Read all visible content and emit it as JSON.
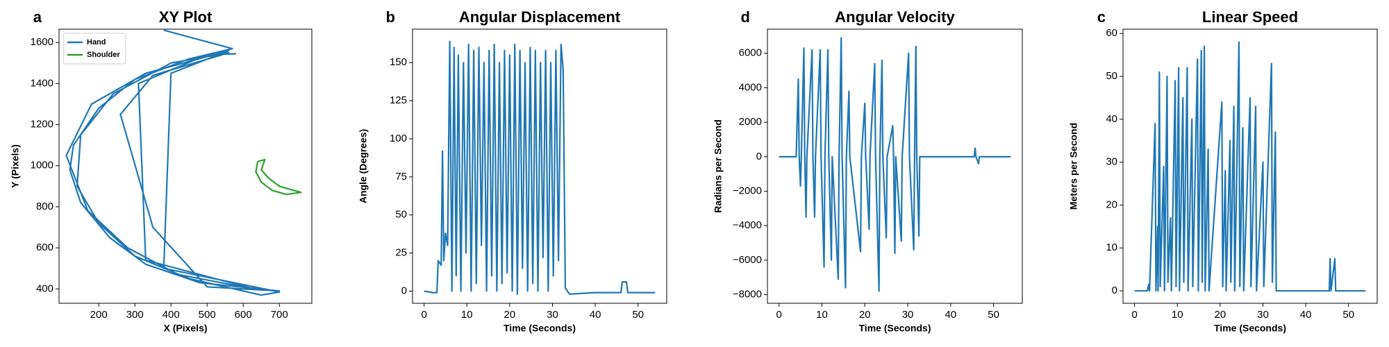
{
  "chart_data": [
    {
      "type": "line",
      "panel_label": "a",
      "title": "XY Plot",
      "xlabel": "X (Pixels)",
      "ylabel": "Y (Pixels)",
      "xlim": [
        90,
        790
      ],
      "ylim": [
        330,
        1665
      ],
      "xticks": [
        200,
        300,
        400,
        500,
        600,
        700
      ],
      "yticks": [
        400,
        600,
        800,
        1000,
        1200,
        1400,
        1600
      ],
      "legend": "upper left",
      "series": [
        {
          "name": "Hand",
          "color": "#1f77b4",
          "x": [
            380,
            570,
            450,
            300,
            200,
            130,
            120,
            150,
            230,
            330,
            480,
            700,
            500,
            350,
            260,
            350,
            560,
            400,
            240,
            150,
            140,
            200,
            300,
            450,
            650,
            700,
            380,
            400,
            560,
            330,
            180,
            110,
            170,
            280,
            420,
            630,
            330,
            310,
            500,
            580
          ],
          "values": [
            1660,
            1570,
            1520,
            1420,
            1280,
            1100,
            980,
            820,
            650,
            520,
            430,
            390,
            410,
            700,
            1250,
            1440,
            1550,
            1500,
            1350,
            1150,
            900,
            720,
            560,
            450,
            370,
            385,
            500,
            1450,
            1560,
            1450,
            1300,
            1050,
            780,
            600,
            470,
            400,
            540,
            1400,
            1540,
            1545
          ]
        },
        {
          "name": "Shoulder",
          "color": "#2ca02c",
          "x": [
            640,
            660,
            650,
            670,
            700,
            740,
            760,
            720,
            680,
            650,
            635,
            640
          ],
          "values": [
            1020,
            1030,
            980,
            940,
            900,
            880,
            870,
            860,
            880,
            920,
            970,
            1020
          ]
        }
      ]
    },
    {
      "type": "line",
      "panel_label": "b",
      "title": "Angular Displacement",
      "xlabel": "Time (Seconds)",
      "ylabel": "Angle (Degrees)",
      "xlim": [
        -2.7,
        56.7
      ],
      "ylim": [
        -8,
        172
      ],
      "xticks": [
        0,
        10,
        20,
        30,
        40,
        50
      ],
      "yticks": [
        0,
        25,
        50,
        75,
        100,
        125,
        150
      ],
      "color": "#1f77b4",
      "x": [
        0,
        2,
        3,
        3.3,
        4,
        4.3,
        4.6,
        5,
        5.5,
        6,
        6.5,
        7,
        7.5,
        8,
        8.6,
        9.2,
        9.8,
        10.4,
        11,
        11.6,
        12.2,
        12.8,
        13.4,
        14,
        14.6,
        15.2,
        15.8,
        16.4,
        17,
        17.6,
        18.2,
        18.8,
        19.4,
        20,
        20.6,
        21.2,
        21.8,
        22.4,
        23,
        23.6,
        24.2,
        24.8,
        25.4,
        26,
        26.6,
        27.2,
        27.8,
        28.4,
        29,
        29.6,
        30.2,
        30.8,
        31.4,
        32,
        32.5,
        33,
        34,
        40,
        46,
        46.3,
        47.3,
        47.6,
        54
      ],
      "values": [
        0,
        -1,
        -1,
        20,
        17,
        92,
        20,
        38,
        30,
        164,
        0,
        160,
        10,
        155,
        0,
        150,
        25,
        162,
        0,
        158,
        5,
        160,
        30,
        150,
        0,
        158,
        10,
        162,
        0,
        150,
        5,
        158,
        12,
        155,
        0,
        162,
        -2,
        158,
        15,
        150,
        0,
        160,
        5,
        158,
        0,
        150,
        22,
        158,
        0,
        150,
        10,
        158,
        20,
        162,
        145,
        2,
        -2,
        -1,
        -1,
        6,
        6,
        -1,
        -1
      ]
    },
    {
      "type": "line",
      "panel_label": "d",
      "title": "Angular Velocity",
      "xlabel": "Time (Seconds)",
      "ylabel": "Radians per Second",
      "xlim": [
        -2.7,
        56.7
      ],
      "ylim": [
        -8500,
        7400
      ],
      "xticks": [
        0,
        10,
        20,
        30,
        40,
        50
      ],
      "yticks": [
        {
          "value": -8000,
          "label": "−8000"
        },
        {
          "value": -6000,
          "label": "−6000"
        },
        {
          "value": -4000,
          "label": "−4000"
        },
        {
          "value": -2000,
          "label": "−2000"
        },
        0,
        2000,
        4000,
        6000
      ],
      "color": "#1f77b4",
      "x": [
        0,
        4,
        4.5,
        4.7,
        5,
        5.2,
        5.8,
        6,
        6.3,
        6.5,
        7.7,
        7.9,
        8.3,
        8.5,
        9.6,
        9.8,
        10.5,
        10.7,
        11.4,
        11.6,
        12.2,
        12.4,
        13.8,
        14,
        14.5,
        14.7,
        15.5,
        15.7,
        16.3,
        16.5,
        19,
        19.2,
        20,
        20.2,
        21,
        21.2,
        22.3,
        22.5,
        23.3,
        23.5,
        24,
        24.2,
        25,
        25.2,
        26.5,
        26.7,
        27,
        27.2,
        28.5,
        28.7,
        30.2,
        30.4,
        31.4,
        31.6,
        31.9,
        32.1,
        32.6,
        32.8,
        45.5,
        45.7,
        45.9,
        46.5,
        46.7,
        54
      ],
      "values": [
        0,
        0,
        4500,
        0,
        -1700,
        0,
        6300,
        0,
        -3500,
        0,
        6200,
        0,
        -3500,
        0,
        6200,
        0,
        -6400,
        0,
        6200,
        0,
        -6000,
        0,
        -7100,
        0,
        6900,
        0,
        -7600,
        0,
        3800,
        0,
        -5500,
        0,
        3100,
        0,
        -4200,
        0,
        5400,
        0,
        -7800,
        0,
        5600,
        0,
        -4700,
        0,
        1800,
        0,
        -5600,
        0,
        -4900,
        0,
        6000,
        0,
        -5400,
        0,
        6400,
        0,
        -4600,
        0,
        0,
        500,
        0,
        -400,
        0,
        0
      ]
    },
    {
      "type": "line",
      "panel_label": "c",
      "title": "Linear Speed",
      "xlabel": "Time (Seconds)",
      "ylabel": "Meters per Second",
      "xlim": [
        -2.7,
        56.7
      ],
      "ylim": [
        -2.9,
        61
      ],
      "xticks": [
        0,
        10,
        20,
        30,
        40,
        50
      ],
      "yticks": [
        0,
        10,
        20,
        30,
        40,
        50,
        60
      ],
      "color": "#1f77b4",
      "x": [
        0,
        3,
        3.3,
        3.5,
        4.8,
        5,
        5.4,
        5.5,
        5.8,
        6,
        6.8,
        7,
        7.6,
        7.8,
        8.4,
        8.6,
        9.5,
        9.7,
        10.3,
        10.5,
        11.3,
        11.5,
        12.3,
        12.5,
        13.4,
        13.6,
        14.7,
        14.9,
        15.6,
        15.8,
        16.3,
        16.5,
        17.2,
        17.4,
        20.4,
        20.6,
        21.2,
        21.4,
        22.3,
        22.5,
        23.2,
        23.4,
        24.4,
        24.6,
        25.3,
        25.5,
        27,
        27.2,
        28.3,
        28.5,
        30,
        30.2,
        32,
        32.2,
        32.9,
        33.1,
        33.5,
        45.5,
        45.7,
        45.9,
        46.8,
        47,
        54
      ],
      "values": [
        0,
        0,
        1.5,
        0,
        39,
        0,
        15,
        0,
        51,
        1,
        29,
        0,
        50,
        2,
        17,
        0,
        49,
        1,
        52,
        0,
        45,
        2,
        52,
        0,
        40,
        1,
        54,
        0,
        56,
        2,
        57,
        0,
        33,
        0,
        44,
        1,
        28,
        0,
        35,
        2,
        43,
        0,
        58,
        1,
        38,
        0,
        45,
        1,
        43,
        0,
        30,
        1,
        53,
        2,
        37,
        0,
        0,
        0,
        7.5,
        0,
        7.5,
        0,
        0
      ]
    }
  ]
}
